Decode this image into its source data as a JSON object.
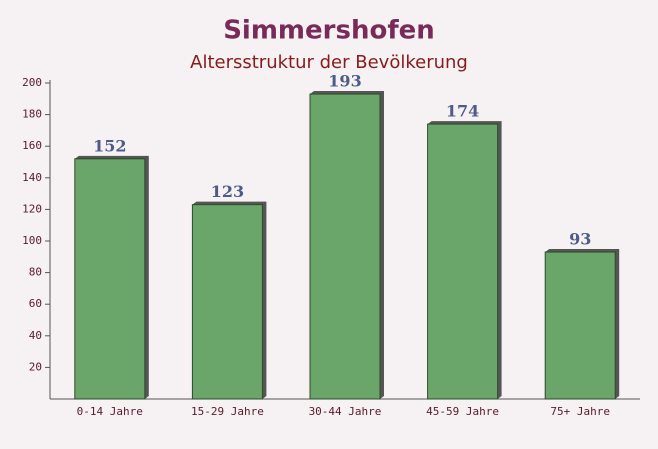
{
  "chart_data": {
    "type": "bar",
    "title": "Simmershofen",
    "subtitle": "Altersstruktur der Bevölkerung",
    "categories": [
      "0-14 Jahre",
      "15-29 Jahre",
      "30-44 Jahre",
      "45-59 Jahre",
      "75+ Jahre"
    ],
    "values": [
      152,
      123,
      193,
      174,
      93
    ],
    "color": "#6aa66a",
    "ylim": [
      0,
      200
    ],
    "yticks": [
      20,
      40,
      60,
      80,
      100,
      120,
      140,
      160,
      180,
      200
    ],
    "grid": false
  }
}
